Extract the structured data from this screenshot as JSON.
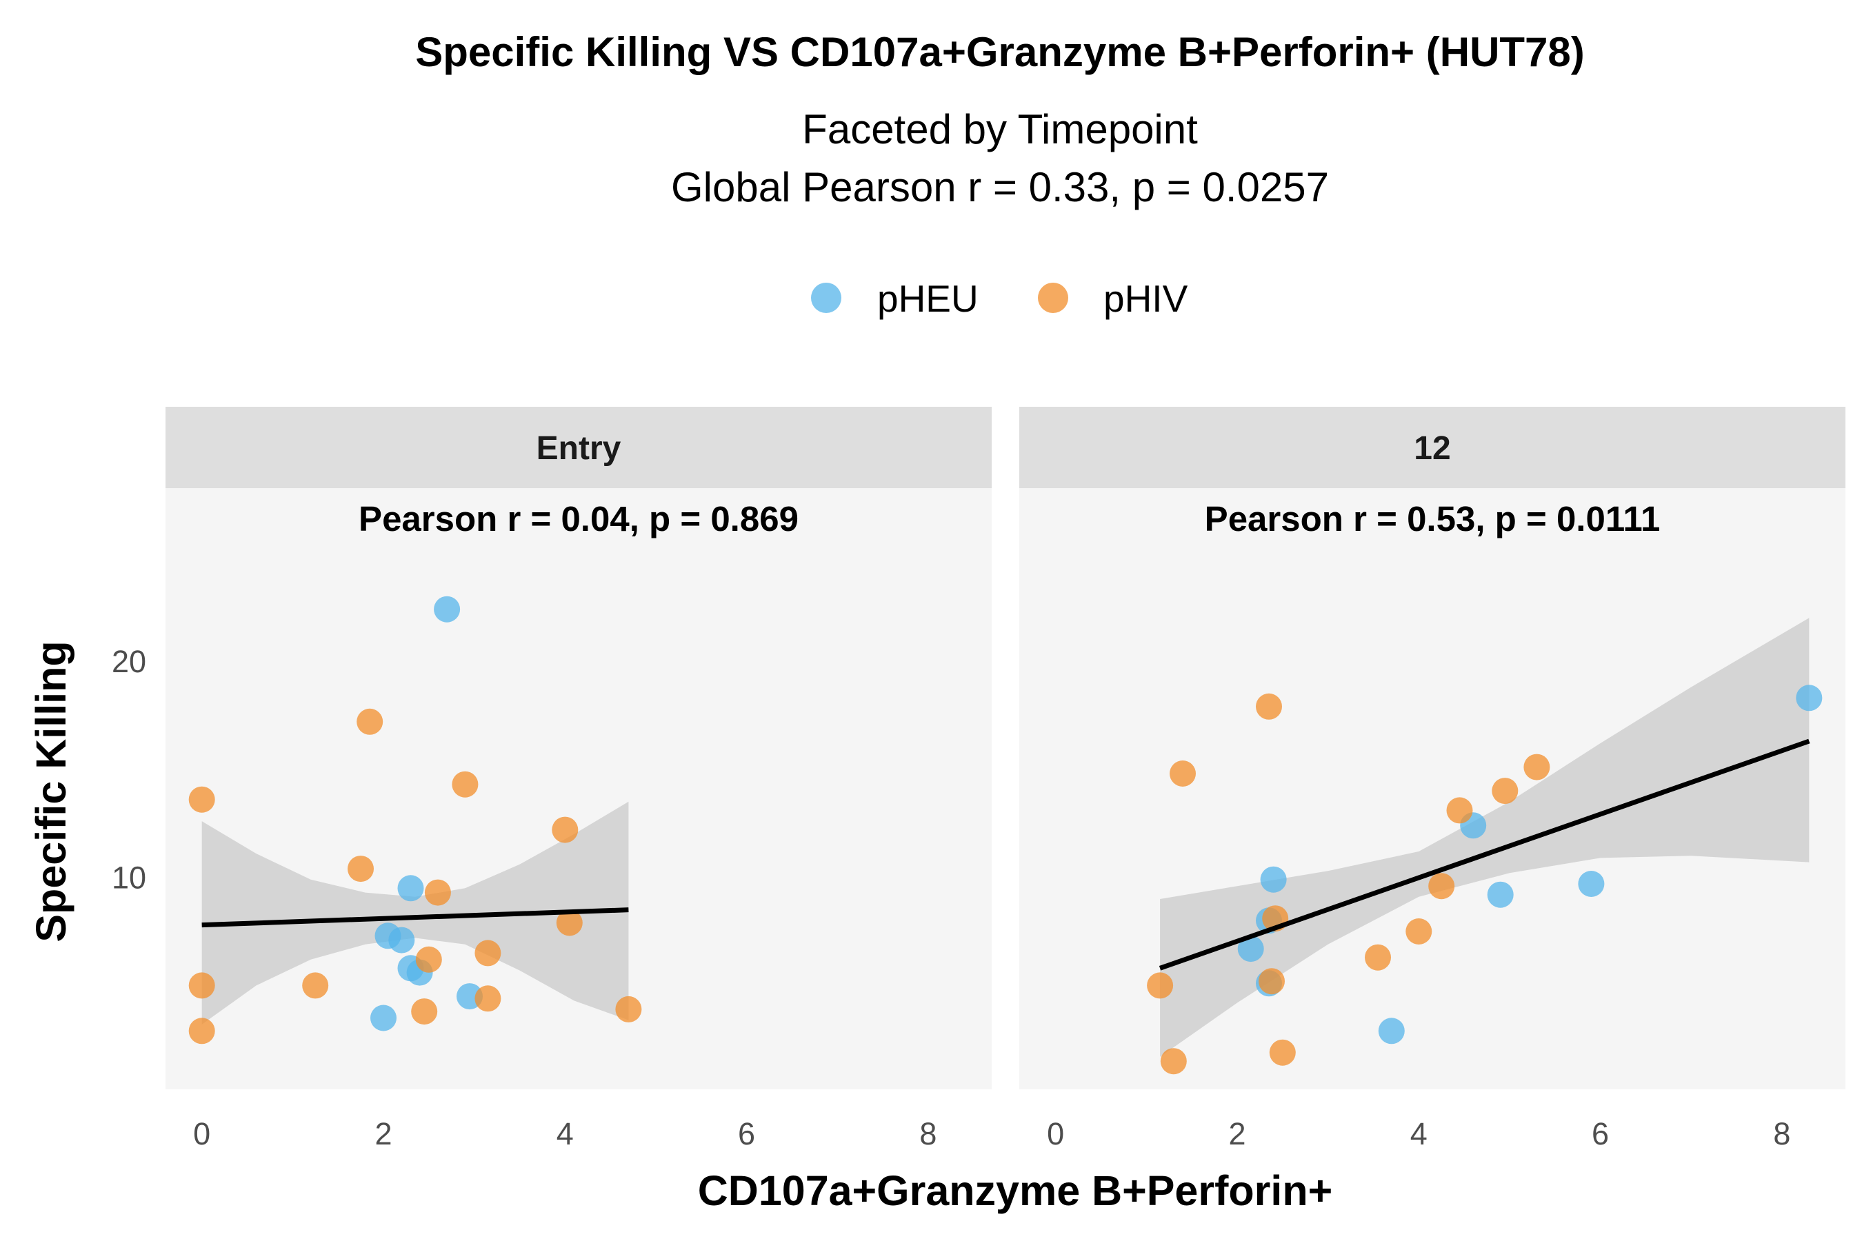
{
  "chart_data": {
    "type": "scatter",
    "title": "Specific Killing VS CD107a+Granzyme B+Perforin+ (HUT78)",
    "subtitle_lines": [
      "Faceted by Timepoint",
      "Global Pearson r = 0.33, p = 0.0257"
    ],
    "xlabel": "CD107a+Granzyme B+Perforin+",
    "ylabel": "Specific Killing",
    "xlim": [
      -0.4,
      8.7
    ],
    "ylim": [
      0.2,
      28
    ],
    "x_ticks": [
      0,
      2,
      4,
      6,
      8
    ],
    "y_ticks": [
      10,
      20
    ],
    "legend": {
      "position": "top",
      "entries": [
        {
          "name": "pHEU",
          "color": "#56B4E9"
        },
        {
          "name": "pHIV",
          "color": "#F28E2B"
        }
      ]
    },
    "colors": {
      "panel_bg": "#F5F5F5",
      "strip_bg": "#DEDEDE",
      "ribbon": "#CFCFCF",
      "line": "#000000"
    },
    "grid": false,
    "facets": [
      {
        "label": "Entry",
        "annotation": "Pearson r = 0.04, p = 0.869",
        "fit": {
          "x": [
            0,
            4.7
          ],
          "y": [
            7.8,
            8.5
          ]
        },
        "ribbon": {
          "x": [
            0,
            0.6,
            1.2,
            1.8,
            2.35,
            2.9,
            3.5,
            4.1,
            4.7
          ],
          "lower": [
            3.2,
            5.0,
            6.2,
            6.9,
            7.2,
            6.9,
            5.7,
            4.3,
            3.4
          ],
          "upper": [
            12.6,
            11.1,
            9.9,
            9.3,
            9.1,
            9.5,
            10.6,
            12.0,
            13.5
          ]
        },
        "points": [
          {
            "group": "pHEU",
            "x": 2.7,
            "y": 22.4
          },
          {
            "group": "pHEU",
            "x": 2.3,
            "y": 9.5
          },
          {
            "group": "pHEU",
            "x": 2.05,
            "y": 7.3
          },
          {
            "group": "pHEU",
            "x": 2.2,
            "y": 7.1
          },
          {
            "group": "pHEU",
            "x": 2.3,
            "y": 5.8
          },
          {
            "group": "pHEU",
            "x": 2.4,
            "y": 5.6
          },
          {
            "group": "pHEU",
            "x": 2.95,
            "y": 4.5
          },
          {
            "group": "pHEU",
            "x": 2.0,
            "y": 3.5
          },
          {
            "group": "pHIV",
            "x": 1.85,
            "y": 17.2
          },
          {
            "group": "pHIV",
            "x": 2.9,
            "y": 14.3
          },
          {
            "group": "pHIV",
            "x": 0.0,
            "y": 13.6
          },
          {
            "group": "pHIV",
            "x": 4.0,
            "y": 12.2
          },
          {
            "group": "pHIV",
            "x": 1.75,
            "y": 10.4
          },
          {
            "group": "pHIV",
            "x": 2.6,
            "y": 9.3
          },
          {
            "group": "pHIV",
            "x": 4.05,
            "y": 7.9
          },
          {
            "group": "pHIV",
            "x": 3.15,
            "y": 6.5
          },
          {
            "group": "pHIV",
            "x": 2.5,
            "y": 6.2
          },
          {
            "group": "pHIV",
            "x": 0.0,
            "y": 5.0
          },
          {
            "group": "pHIV",
            "x": 1.25,
            "y": 5.0
          },
          {
            "group": "pHIV",
            "x": 3.15,
            "y": 4.4
          },
          {
            "group": "pHIV",
            "x": 2.45,
            "y": 3.8
          },
          {
            "group": "pHIV",
            "x": 4.7,
            "y": 3.9
          },
          {
            "group": "pHIV",
            "x": 0.0,
            "y": 2.9
          }
        ]
      },
      {
        "label": "12",
        "annotation": "Pearson r = 0.53, p = 0.0111",
        "fit": {
          "x": [
            1.15,
            8.3
          ],
          "y": [
            5.8,
            16.3
          ]
        },
        "ribbon": {
          "x": [
            1.15,
            2.0,
            3.0,
            4.0,
            5.0,
            6.0,
            7.0,
            8.3
          ],
          "lower": [
            1.7,
            4.2,
            6.9,
            9.1,
            10.2,
            10.9,
            11.0,
            10.7
          ],
          "upper": [
            9.0,
            9.6,
            10.3,
            11.2,
            13.5,
            16.2,
            18.8,
            22.0
          ]
        },
        "points": [
          {
            "group": "pHEU",
            "x": 8.3,
            "y": 18.3
          },
          {
            "group": "pHEU",
            "x": 4.6,
            "y": 12.4
          },
          {
            "group": "pHEU",
            "x": 2.4,
            "y": 9.9
          },
          {
            "group": "pHEU",
            "x": 5.9,
            "y": 9.7
          },
          {
            "group": "pHEU",
            "x": 4.9,
            "y": 9.2
          },
          {
            "group": "pHEU",
            "x": 2.35,
            "y": 8.0
          },
          {
            "group": "pHEU",
            "x": 2.15,
            "y": 6.7
          },
          {
            "group": "pHEU",
            "x": 2.35,
            "y": 5.1
          },
          {
            "group": "pHEU",
            "x": 3.7,
            "y": 2.9
          },
          {
            "group": "pHIV",
            "x": 2.35,
            "y": 17.9
          },
          {
            "group": "pHIV",
            "x": 5.3,
            "y": 15.1
          },
          {
            "group": "pHIV",
            "x": 1.4,
            "y": 14.8
          },
          {
            "group": "pHIV",
            "x": 4.95,
            "y": 14.0
          },
          {
            "group": "pHIV",
            "x": 4.45,
            "y": 13.1
          },
          {
            "group": "pHIV",
            "x": 4.25,
            "y": 9.6
          },
          {
            "group": "pHIV",
            "x": 2.42,
            "y": 8.1
          },
          {
            "group": "pHIV",
            "x": 4.0,
            "y": 7.5
          },
          {
            "group": "pHIV",
            "x": 3.55,
            "y": 6.3
          },
          {
            "group": "pHIV",
            "x": 2.38,
            "y": 5.2
          },
          {
            "group": "pHIV",
            "x": 1.15,
            "y": 5.0
          },
          {
            "group": "pHIV",
            "x": 2.5,
            "y": 1.9
          },
          {
            "group": "pHIV",
            "x": 1.3,
            "y": 1.5
          }
        ]
      }
    ]
  }
}
